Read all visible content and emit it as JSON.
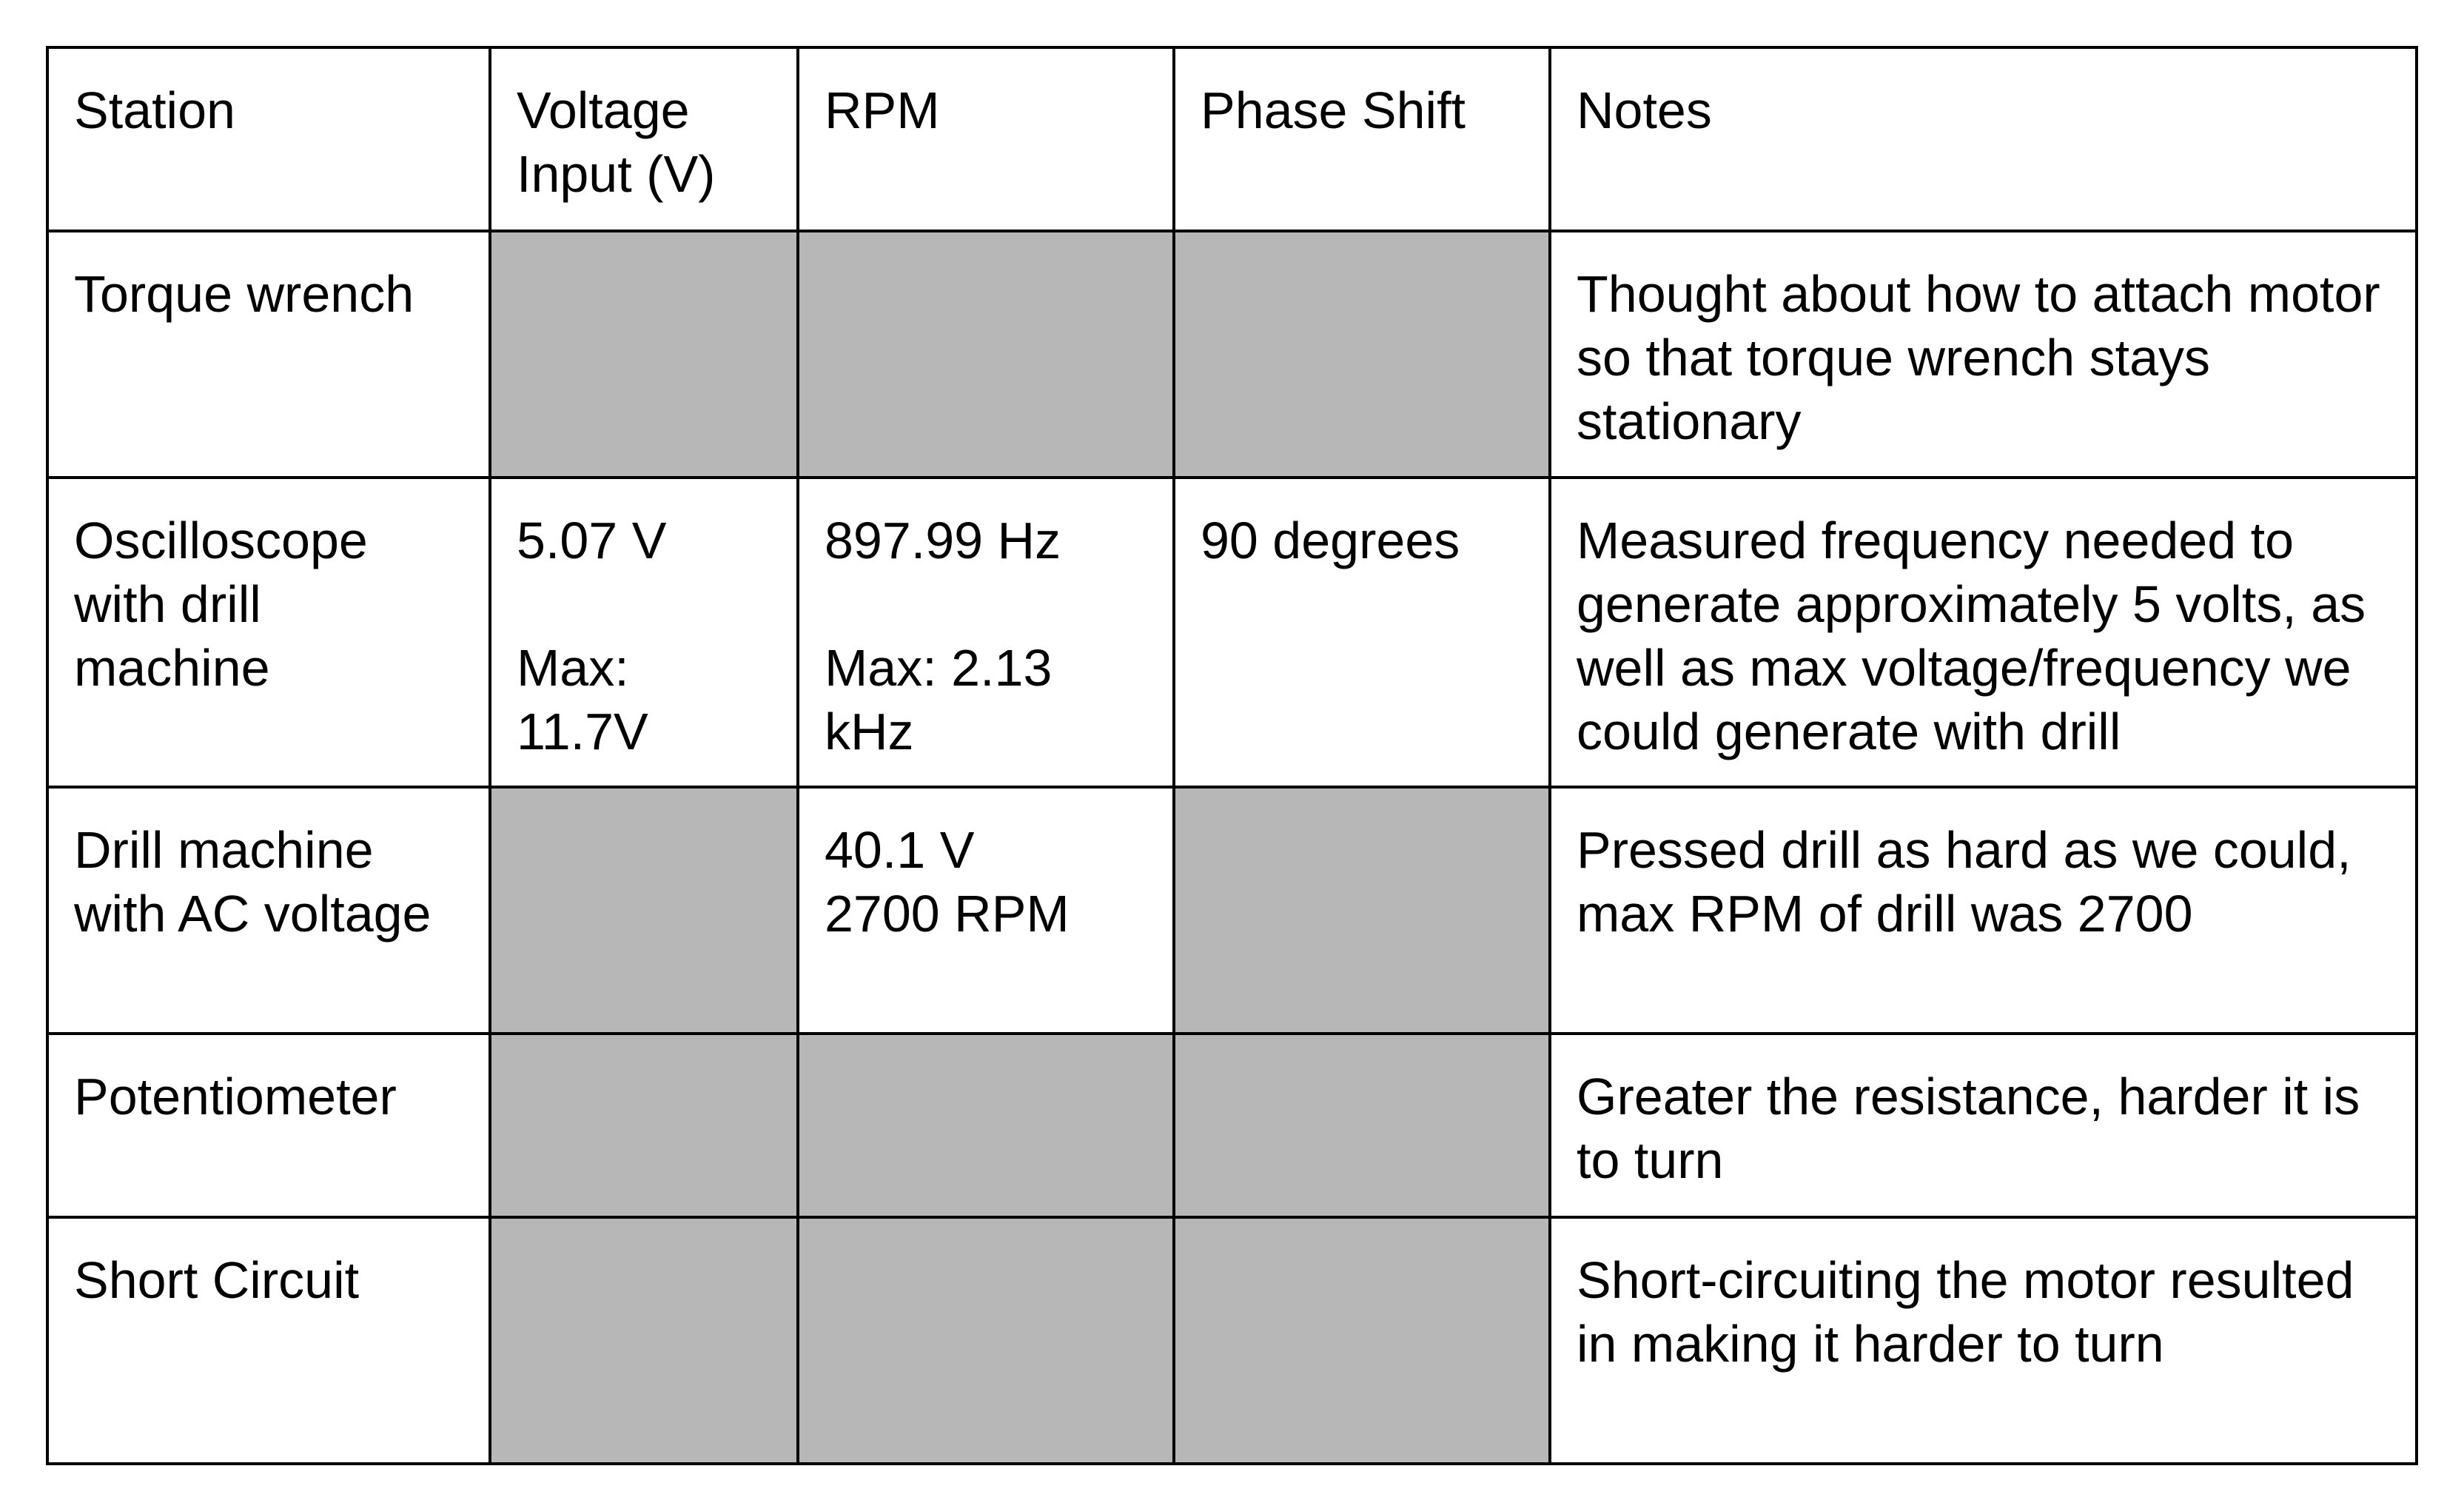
{
  "table": {
    "headers": [
      "Station",
      "Voltage Input (V)",
      "RPM",
      "Phase Shift",
      "Notes"
    ],
    "rows": [
      {
        "station": "Torque wrench",
        "voltage": "",
        "rpm": "",
        "phase": "",
        "notes": "Thought about how to attach motor so that torque wrench stays stationary"
      },
      {
        "station": "Oscilloscope with drill machine",
        "voltage": "5.07 V",
        "voltage_max": "Max: 11.7V",
        "rpm": "897.99 Hz",
        "rpm_max": "Max: 2.13 kHz",
        "phase": "90 degrees",
        "notes": "Measured frequency needed to generate approximately 5 volts, as well as max voltage/frequency we could generate with drill"
      },
      {
        "station": "Drill machine with AC voltage",
        "voltage": "",
        "rpm": "40.1 V",
        "rpm_line2": "2700 RPM",
        "phase": "",
        "notes": "Pressed drill as hard as we could, max RPM of drill was 2700"
      },
      {
        "station": "Potentiometer",
        "voltage": "",
        "rpm": "",
        "phase": "",
        "notes": "Greater the resistance, harder it is to turn"
      },
      {
        "station": "Short Circuit",
        "voltage": "",
        "rpm": "",
        "phase": "",
        "notes": "Short-circuiting the motor resulted in making it harder to turn"
      }
    ],
    "shade_color": "#b7b7b7"
  }
}
